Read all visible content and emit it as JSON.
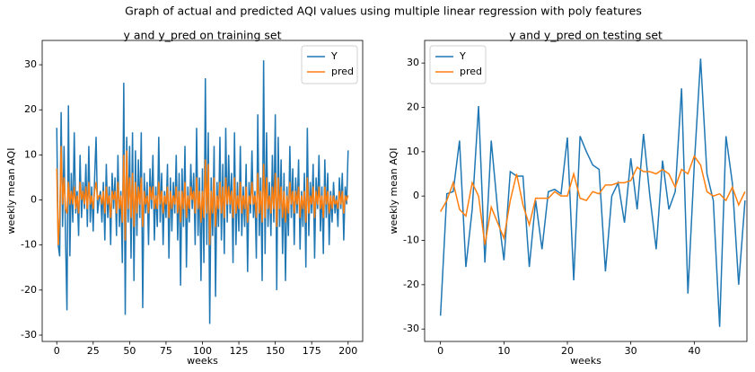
{
  "title": "Graph of actual and predicted AQI values using multiple linear regression with poly features",
  "chart_data": [
    {
      "type": "line",
      "title": "y and y_pred on training set",
      "x_label": "weeks",
      "y_label": "weekly mean AQI",
      "x": [
        0,
        1,
        2,
        3,
        4,
        5,
        6,
        7,
        8,
        9,
        10,
        11,
        12,
        13,
        14,
        15,
        16,
        17,
        18,
        19,
        20,
        21,
        22,
        23,
        24,
        25,
        26,
        27,
        28,
        29,
        30,
        31,
        32,
        33,
        34,
        35,
        36,
        37,
        38,
        39,
        40,
        41,
        42,
        43,
        44,
        45,
        46,
        47,
        48,
        49,
        50,
        51,
        52,
        53,
        54,
        55,
        56,
        57,
        58,
        59,
        60,
        61,
        62,
        63,
        64,
        65,
        66,
        67,
        68,
        69,
        70,
        71,
        72,
        73,
        74,
        75,
        76,
        77,
        78,
        79,
        80,
        81,
        82,
        83,
        84,
        85,
        86,
        87,
        88,
        89,
        90,
        91,
        92,
        93,
        94,
        95,
        96,
        97,
        98,
        99,
        100,
        101,
        102,
        103,
        104,
        105,
        106,
        107,
        108,
        109,
        110,
        111,
        112,
        113,
        114,
        115,
        116,
        117,
        118,
        119,
        120,
        121,
        122,
        123,
        124,
        125,
        126,
        127,
        128,
        129,
        130,
        131,
        132,
        133,
        134,
        135,
        136,
        137,
        138,
        139,
        140,
        141,
        142,
        143,
        144,
        145,
        146,
        147,
        148,
        149,
        150,
        151,
        152,
        153,
        154,
        155,
        156,
        157,
        158,
        159,
        160,
        161,
        162,
        163,
        164,
        165,
        166,
        167,
        168,
        169,
        170,
        171,
        172,
        173,
        174,
        175,
        176,
        177,
        178,
        179,
        180,
        181,
        182,
        183,
        184,
        185,
        186,
        187,
        188,
        189,
        190,
        191,
        192,
        193,
        194,
        195,
        196,
        197,
        198,
        199,
        200
      ],
      "series": [
        {
          "name": "Y",
          "color": "#1f77b4",
          "values": [
            16,
            -10,
            -12.5,
            19.5,
            -6,
            12,
            -8,
            -24.5,
            21,
            -12.5,
            6,
            -5,
            15,
            -3,
            2,
            -8,
            10,
            -4,
            4,
            -2,
            8,
            -6,
            12,
            -5,
            3,
            -7,
            5,
            14,
            -3,
            0,
            2,
            -5,
            4,
            -9,
            8,
            -4,
            3,
            -10,
            6,
            -2,
            5,
            -8,
            10,
            -6,
            2,
            -14,
            26,
            -25.5,
            14,
            -5,
            12,
            -13,
            15,
            -18,
            11,
            -8,
            9,
            -4,
            15,
            -24,
            6,
            -3,
            4,
            -10,
            7,
            -2,
            10,
            -9,
            3,
            -6,
            14,
            -5,
            6,
            -10,
            2,
            -4,
            8,
            -13,
            5,
            -7,
            4,
            -3,
            10,
            -9,
            6,
            -19,
            7,
            -6,
            12,
            -15,
            3,
            -5,
            8,
            -2,
            6,
            -10,
            16,
            -8,
            5,
            -18,
            7,
            -14,
            27,
            -10,
            15,
            -27.5,
            5,
            -8,
            12,
            -21.5,
            4,
            -6,
            14,
            -9,
            8,
            -12,
            16,
            -5,
            10,
            -3,
            6,
            -14,
            15,
            -10,
            4,
            -7,
            12,
            -8,
            3,
            -6,
            8,
            -16,
            4,
            -3,
            11,
            -4,
            2,
            -13,
            19,
            -8,
            5,
            -18,
            31,
            -12,
            15,
            -6,
            4,
            -8,
            10,
            -5,
            19,
            -20,
            14,
            -6,
            9,
            -12,
            6,
            -18,
            3,
            -8,
            12,
            -4,
            7,
            -10,
            5,
            -3,
            9,
            -11,
            2,
            -6,
            6,
            -15,
            16,
            -8,
            4,
            -3,
            8,
            -13,
            5,
            -2,
            10,
            -7,
            3,
            -12,
            9,
            -4,
            6,
            -10,
            2,
            -5,
            4,
            -3,
            1,
            -6,
            5,
            -2,
            6,
            -9,
            3,
            -1,
            11
          ]
        },
        {
          "name": "pred",
          "color": "#ff7f0e",
          "values": [
            7,
            -10,
            -4,
            12,
            -1,
            5,
            -2,
            -3,
            4,
            -1,
            2,
            -1,
            3,
            -2,
            1,
            -3,
            4,
            0,
            2,
            -1,
            3,
            -2,
            4,
            -1,
            1,
            -2,
            2,
            4,
            0,
            1,
            1,
            -1,
            2,
            -3,
            3,
            -1,
            1,
            -4,
            2,
            0,
            2,
            -3,
            4,
            -2,
            1,
            -5,
            10,
            -9,
            11,
            -2,
            5,
            -4,
            6,
            -6,
            4,
            -3,
            3,
            -1,
            5,
            -6,
            2,
            -1,
            1,
            -3,
            3,
            0,
            3,
            -2,
            1,
            -2,
            4,
            -1,
            2,
            -3,
            1,
            -1,
            3,
            -4,
            2,
            -2,
            1,
            -1,
            3,
            -3,
            2,
            -5,
            2,
            -2,
            4,
            -4,
            1,
            -2,
            3,
            0,
            2,
            -3,
            5,
            -2,
            2,
            -5,
            2,
            -4,
            9,
            -3,
            8,
            -10,
            2,
            -3,
            5,
            -6,
            1,
            -2,
            4,
            -3,
            3,
            -4,
            5,
            -1,
            3,
            -1,
            2,
            -4,
            5,
            -3,
            1,
            -2,
            4,
            -3,
            1,
            -2,
            3,
            -5,
            1,
            -1,
            4,
            -1,
            1,
            -4,
            6,
            -3,
            2,
            -5,
            8,
            -4,
            5,
            -2,
            1,
            -3,
            3,
            -2,
            6,
            -6,
            5,
            -2,
            3,
            -4,
            2,
            -5,
            1,
            -3,
            4,
            -1,
            2,
            -3,
            2,
            -1,
            3,
            -4,
            1,
            -2,
            2,
            -5,
            5,
            -3,
            1,
            -1,
            3,
            -4,
            2,
            -1,
            3,
            -2,
            1,
            -4,
            3,
            -1,
            2,
            -3,
            1,
            -2,
            1,
            -1,
            0,
            -2,
            2,
            -1,
            2,
            -3,
            1,
            0,
            1
          ]
        }
      ],
      "xlim": [
        -10,
        210
      ],
      "xticks": [
        0,
        25,
        50,
        75,
        100,
        125,
        150,
        175,
        200
      ],
      "ylim": [
        -31.4,
        35.4
      ],
      "yticks": [
        -30,
        -20,
        -10,
        0,
        10,
        20,
        30
      ],
      "legend": "upper right",
      "grid": false
    },
    {
      "type": "line",
      "title": "y and y_pred on testing set",
      "x_label": "weeks",
      "y_label": "weekly mean AQI",
      "x": [
        0,
        1,
        2,
        3,
        4,
        5,
        6,
        7,
        8,
        9,
        10,
        11,
        12,
        13,
        14,
        15,
        16,
        17,
        18,
        19,
        20,
        21,
        22,
        23,
        24,
        25,
        26,
        27,
        28,
        29,
        30,
        31,
        32,
        33,
        34,
        35,
        36,
        37,
        38,
        39,
        40,
        41,
        42,
        43,
        44,
        45,
        46,
        47,
        48
      ],
      "series": [
        {
          "name": "Y",
          "color": "#1f77b4",
          "values": [
            -27,
            0.5,
            1,
            12.5,
            -16,
            -3,
            20.3,
            -15,
            12.5,
            -3,
            -14.5,
            5.5,
            4.5,
            4.5,
            -16,
            -1,
            -12,
            1,
            1.5,
            0.5,
            13.2,
            -19,
            13.5,
            10,
            7,
            6,
            -17,
            0,
            3,
            -6,
            8.5,
            -3,
            14,
            0,
            -12,
            8,
            -3,
            1,
            24.3,
            -22,
            7,
            31,
            5,
            -1,
            -29.5,
            13.5,
            3,
            -20,
            -1
          ]
        },
        {
          "name": "pred",
          "color": "#ff7f0e",
          "values": [
            -3.5,
            -1,
            3,
            -3,
            -4.5,
            3,
            0,
            -11,
            -2.5,
            -6,
            -9.5,
            -1,
            5,
            -2,
            -6.5,
            -0.5,
            -0.5,
            -0.5,
            1,
            0,
            0,
            5,
            -0.5,
            -1,
            1,
            0.5,
            2.5,
            2.5,
            3,
            3,
            3.5,
            6.5,
            5.5,
            5.5,
            5,
            6,
            5,
            2,
            6,
            5,
            9,
            7,
            1,
            0,
            0.5,
            -1,
            2,
            -2,
            1
          ]
        }
      ],
      "xlim": [
        -2.5,
        48.3
      ],
      "xticks": [
        0,
        10,
        20,
        30,
        40
      ],
      "ylim": [
        -32.8,
        35.1
      ],
      "yticks": [
        -30,
        -20,
        -10,
        0,
        10,
        20,
        30
      ],
      "legend": "upper left",
      "grid": false
    }
  ]
}
